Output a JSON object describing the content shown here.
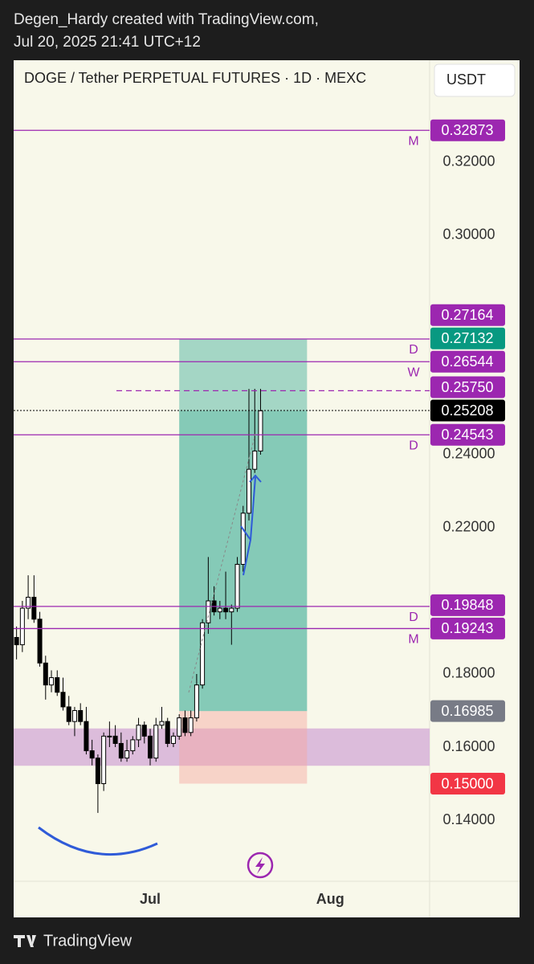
{
  "header": {
    "line1": "Degen_Hardy created with TradingView.com,",
    "line2": "Jul 20, 2025 21:41 UTC+12"
  },
  "footer": {
    "brand": "TradingView"
  },
  "chart_data": {
    "type": "candlestick",
    "title": "DOGE / Tether PERPETUAL FUTURES · 1D · MEXC",
    "currency": "USDT",
    "xlim": [
      -23.5,
      48.1
    ],
    "xticks": [
      {
        "value": 0,
        "label": "Jul"
      },
      {
        "value": 31,
        "label": "Aug"
      }
    ],
    "ylim": [
      0.1233,
      0.3479
    ],
    "yticks": [
      {
        "value": 0.14,
        "label": "0.14000"
      },
      {
        "value": 0.16,
        "label": "0.16000"
      },
      {
        "value": 0.18,
        "label": "0.18000"
      },
      {
        "value": 0.22,
        "label": "0.22000"
      },
      {
        "value": 0.24,
        "label": "0.24000"
      },
      {
        "value": 0.3,
        "label": "0.30000"
      },
      {
        "value": 0.32,
        "label": "0.32000"
      }
    ],
    "x": [
      -23,
      -22,
      -21,
      -20,
      -19,
      -18,
      -17,
      -16,
      -15,
      -14,
      -13,
      -12,
      -11,
      -10,
      -9,
      -8,
      -7,
      -6,
      -5,
      -4,
      -3,
      -2,
      -1,
      0,
      1,
      2,
      3,
      4,
      5,
      6,
      7,
      8,
      9,
      10,
      11,
      12,
      13,
      14,
      15,
      16,
      17,
      18,
      19
    ],
    "open": [
      0.19,
      0.188,
      0.198,
      0.201,
      0.195,
      0.183,
      0.177,
      0.179,
      0.175,
      0.171,
      0.167,
      0.17,
      0.167,
      0.159,
      0.157,
      0.15,
      0.163,
      0.163,
      0.161,
      0.157,
      0.159,
      0.162,
      0.166,
      0.163,
      0.157,
      0.166,
      0.167,
      0.161,
      0.163,
      0.168,
      0.164,
      0.168,
      0.177,
      0.194,
      0.2,
      0.197,
      0.198,
      0.197,
      0.198,
      0.21,
      0.224,
      0.236,
      0.241
    ],
    "high": [
      0.193,
      0.2,
      0.207,
      0.207,
      0.197,
      0.185,
      0.181,
      0.181,
      0.179,
      0.174,
      0.171,
      0.172,
      0.171,
      0.162,
      0.158,
      0.164,
      0.167,
      0.166,
      0.164,
      0.162,
      0.163,
      0.168,
      0.167,
      0.165,
      0.168,
      0.171,
      0.168,
      0.164,
      0.169,
      0.17,
      0.17,
      0.18,
      0.195,
      0.212,
      0.204,
      0.2,
      0.208,
      0.199,
      0.212,
      0.226,
      0.258,
      0.258,
      0.258
    ],
    "low": [
      0.184,
      0.186,
      0.195,
      0.194,
      0.182,
      0.173,
      0.175,
      0.174,
      0.17,
      0.166,
      0.163,
      0.166,
      0.158,
      0.155,
      0.142,
      0.148,
      0.16,
      0.16,
      0.156,
      0.156,
      0.158,
      0.16,
      0.161,
      0.155,
      0.156,
      0.165,
      0.16,
      0.16,
      0.162,
      0.163,
      0.163,
      0.167,
      0.176,
      0.191,
      0.196,
      0.195,
      0.195,
      0.188,
      0.197,
      0.208,
      0.222,
      0.235,
      0.24
    ],
    "close": [
      0.188,
      0.198,
      0.201,
      0.195,
      0.183,
      0.177,
      0.179,
      0.175,
      0.171,
      0.167,
      0.17,
      0.167,
      0.159,
      0.157,
      0.15,
      0.163,
      0.163,
      0.161,
      0.157,
      0.159,
      0.162,
      0.166,
      0.163,
      0.157,
      0.166,
      0.167,
      0.161,
      0.163,
      0.168,
      0.164,
      0.168,
      0.177,
      0.194,
      0.2,
      0.197,
      0.198,
      0.197,
      0.198,
      0.21,
      0.224,
      0.236,
      0.241,
      0.252
    ],
    "up_color": "#ffffff",
    "down_color": "#000000",
    "zone": {
      "low": 0.1549,
      "high": 0.1651,
      "color": "#d7b1d8"
    },
    "position": {
      "x": [
        5,
        27
      ],
      "entry": 0.16985,
      "target": 0.27164,
      "stop": 0.15
    },
    "levels": [
      {
        "value": 0.32873,
        "label": "0.32873",
        "tag": "M",
        "color": "#9c27b0",
        "line": "solid"
      },
      {
        "value": 0.27164,
        "label": "0.27164",
        "tag": "D",
        "color": "#9c27b0",
        "line": "solid"
      },
      {
        "value": 0.27132,
        "label": "0.27132",
        "color": "#089981",
        "line": "none"
      },
      {
        "value": 0.26544,
        "label": "0.26544",
        "tag": "W",
        "color": "#9c27b0",
        "line": "solid"
      },
      {
        "value": 0.2575,
        "label": "0.25750",
        "color": "#9c27b0",
        "line": "dashed"
      },
      {
        "value": 0.25208,
        "label": "0.25208",
        "color": "#000000",
        "line": "dotted"
      },
      {
        "value": 0.24543,
        "label": "0.24543",
        "tag": "D",
        "color": "#9c27b0",
        "line": "solid"
      },
      {
        "value": 0.19848,
        "label": "0.19848",
        "tag": "D",
        "color": "#9c27b0",
        "line": "solid"
      },
      {
        "value": 0.19243,
        "label": "0.19243",
        "tag": "M",
        "color": "#9c27b0",
        "line": "solid"
      },
      {
        "value": 0.16985,
        "label": "0.16985",
        "color": "#787b86",
        "line": "none"
      },
      {
        "value": 0.15,
        "label": "0.15000",
        "color": "#f23645",
        "line": "none"
      }
    ]
  }
}
